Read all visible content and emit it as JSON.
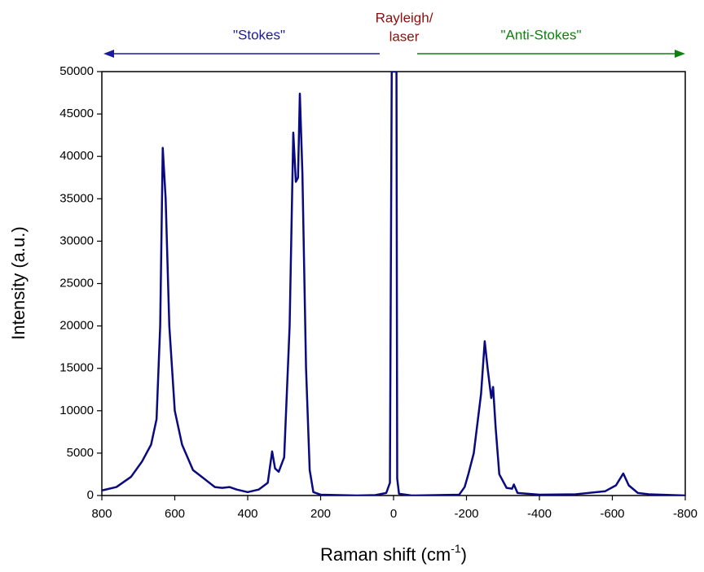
{
  "chart_data": {
    "type": "line",
    "xlabel": [
      "Raman shift (cm",
      "-1",
      ")"
    ],
    "ylabel": "Intensity (a.u.)",
    "annotations": [
      {
        "text": "\"Stokes\"",
        "color": "#1a1a9a"
      },
      {
        "lines": [
          "Rayleigh/",
          "laser"
        ],
        "color": "#8b1010"
      },
      {
        "text": "\"Anti-Stokes\"",
        "color": "#108010"
      }
    ],
    "xlim": [
      800,
      -800
    ],
    "xticks": [
      800,
      600,
      400,
      200,
      0,
      -200,
      -400,
      -600,
      -800
    ],
    "ylim": [
      0,
      50000
    ],
    "yticks": [
      0,
      5000,
      10000,
      15000,
      20000,
      25000,
      30000,
      35000,
      40000,
      45000,
      50000
    ],
    "x": [
      800,
      760,
      720,
      690,
      665,
      650,
      640,
      633,
      625,
      615,
      600,
      580,
      550,
      520,
      490,
      470,
      450,
      430,
      400,
      370,
      345,
      333,
      325,
      315,
      300,
      285,
      275,
      268,
      262,
      257,
      250,
      240,
      230,
      220,
      200,
      100,
      50,
      20,
      10,
      5,
      -8,
      -10,
      -15,
      -50,
      -180,
      -195,
      -205,
      -220,
      -240,
      -250,
      -258,
      -268,
      -273,
      -280,
      -290,
      -310,
      -325,
      -330,
      -340,
      -400,
      -500,
      -580,
      -610,
      -630,
      -645,
      -670,
      -700,
      -800
    ],
    "series": [
      {
        "color": "#0a0a80",
        "values": [
          600,
          1000,
          2200,
          4000,
          6000,
          9000,
          20000,
          41000,
          35000,
          20000,
          10000,
          6000,
          3000,
          2000,
          1000,
          900,
          1000,
          700,
          400,
          700,
          1500,
          5200,
          3200,
          2800,
          4500,
          20000,
          42800,
          37000,
          37500,
          47400,
          38000,
          15000,
          3000,
          400,
          100,
          0,
          50,
          300,
          1500,
          50000,
          50000,
          2000,
          200,
          0,
          100,
          1000,
          2500,
          5000,
          12000,
          18200,
          15000,
          11500,
          12800,
          8000,
          2500,
          900,
          800,
          1300,
          300,
          100,
          150,
          500,
          1200,
          2600,
          1200,
          300,
          150,
          0
        ]
      }
    ]
  }
}
